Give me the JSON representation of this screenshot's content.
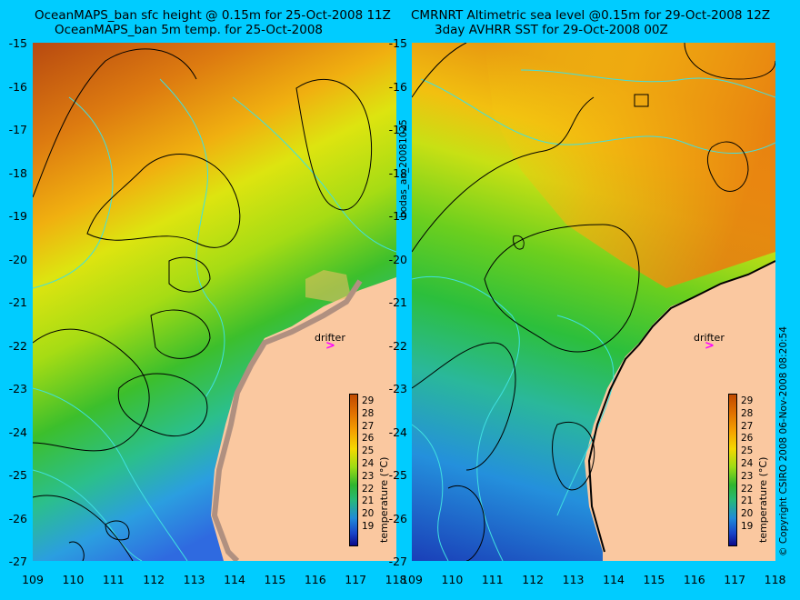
{
  "left_panel": {
    "title_line1": "OceanMAPS_ban sfc height @ 0.15m for 25-Oct-2008 11Z",
    "title_line2": "OceanMAPS_ban 5m temp. for 25-Oct-2008"
  },
  "right_panel": {
    "title_line1": "CMRNRT Altimetric sea level  @0.15m  for 29-Oct-2008 12Z",
    "title_line2": "3day AVHRR SST for 29-Oct-2008 00Z"
  },
  "center_vertical_text": "bodas_an_20081025",
  "right_vertical_text": "© Copyright CSIRO 2008   06-Nov-2008 08:20:54",
  "y_tick_labels": [
    "-15",
    "-16",
    "-17",
    "-18",
    "-19",
    "-20",
    "-21",
    "-22",
    "-23",
    "-24",
    "-25",
    "-26",
    "-27"
  ],
  "x_tick_labels": [
    "109",
    "110",
    "111",
    "112",
    "113",
    "114",
    "115",
    "116",
    "117",
    "118"
  ],
  "colorbar": {
    "label": "temperature (°C)",
    "ticks": [
      "29",
      "28",
      "27",
      "26",
      "25",
      "24",
      "23",
      "22",
      "21",
      "20",
      "19"
    ]
  },
  "drifter_label": "drifter",
  "drifter_marker": ">",
  "colors": {
    "background": "#00ccff",
    "land": "#fac8a0",
    "bathymetry_contour": "#40e0e0",
    "sea_level_contour": "#000000",
    "drifter_marker": "#ff00ff"
  }
}
